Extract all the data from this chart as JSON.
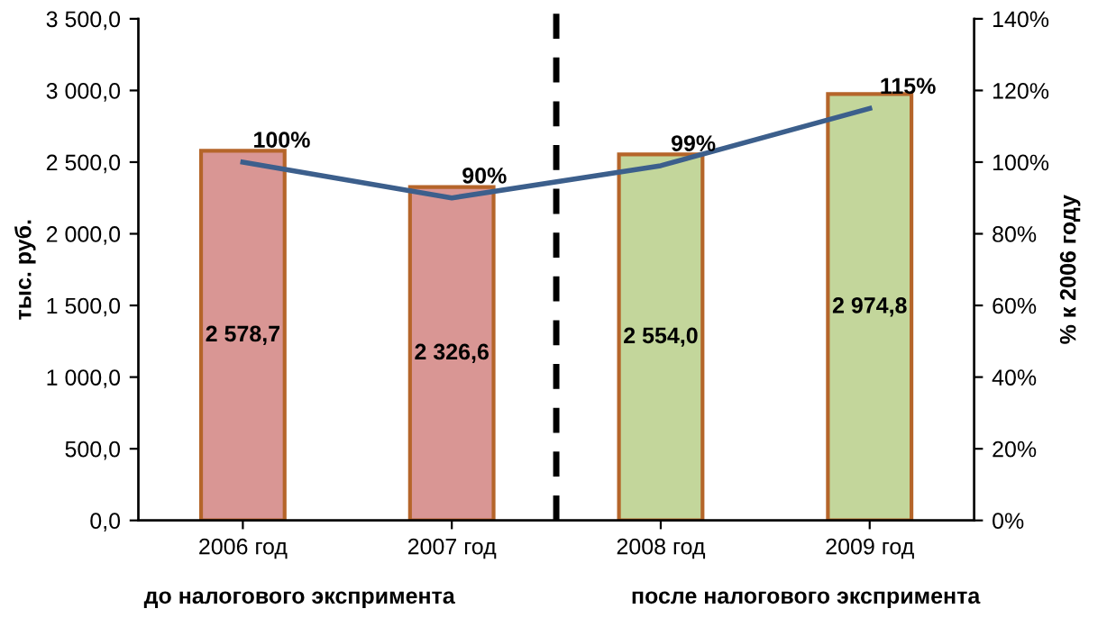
{
  "chart_data": {
    "type": "bar",
    "categories": [
      "2006 год",
      "2007 год",
      "2008 год",
      "2009 год"
    ],
    "ylabel": "тыс. руб.",
    "y2label": "% к 2006 году",
    "ylim": [
      0,
      3500
    ],
    "yticks": [
      {
        "value": 0,
        "label": "0,0"
      },
      {
        "value": 500,
        "label": "500,0"
      },
      {
        "value": 1000,
        "label": "1 000,0"
      },
      {
        "value": 1500,
        "label": "1 500,0"
      },
      {
        "value": 2000,
        "label": "2 000,0"
      },
      {
        "value": 2500,
        "label": "2 500,0"
      },
      {
        "value": 3000,
        "label": "3 000,0"
      },
      {
        "value": 3500,
        "label": "3 500,0"
      }
    ],
    "y2lim": [
      0,
      140
    ],
    "y2ticks": [
      {
        "value": 0,
        "label": "0%"
      },
      {
        "value": 20,
        "label": "20%"
      },
      {
        "value": 40,
        "label": "40%"
      },
      {
        "value": 60,
        "label": "60%"
      },
      {
        "value": 80,
        "label": "80%"
      },
      {
        "value": 100,
        "label": "100%"
      },
      {
        "value": 120,
        "label": "120%"
      },
      {
        "value": 140,
        "label": "140%"
      }
    ],
    "series": [
      {
        "values": [
          2578.7,
          2326.6,
          2554.0,
          2974.8
        ],
        "colors": [
          "#d99694",
          "#d99694",
          "#c3d69b",
          "#c3d69b"
        ],
        "value_labels": [
          "2 578,7",
          "2 326,6",
          "2 554,0",
          "2 974,8"
        ]
      },
      {
        "type": "line",
        "axis": "y2",
        "color": "#3c5f8c",
        "values": [
          100,
          90,
          99,
          115
        ],
        "value_labels": [
          "100%",
          "90%",
          "99%",
          "115%"
        ]
      }
    ],
    "annotations": [
      "до налогового экспримента",
      "после налогового экспримента"
    ],
    "grid": false,
    "legend": false,
    "marker": "none"
  }
}
